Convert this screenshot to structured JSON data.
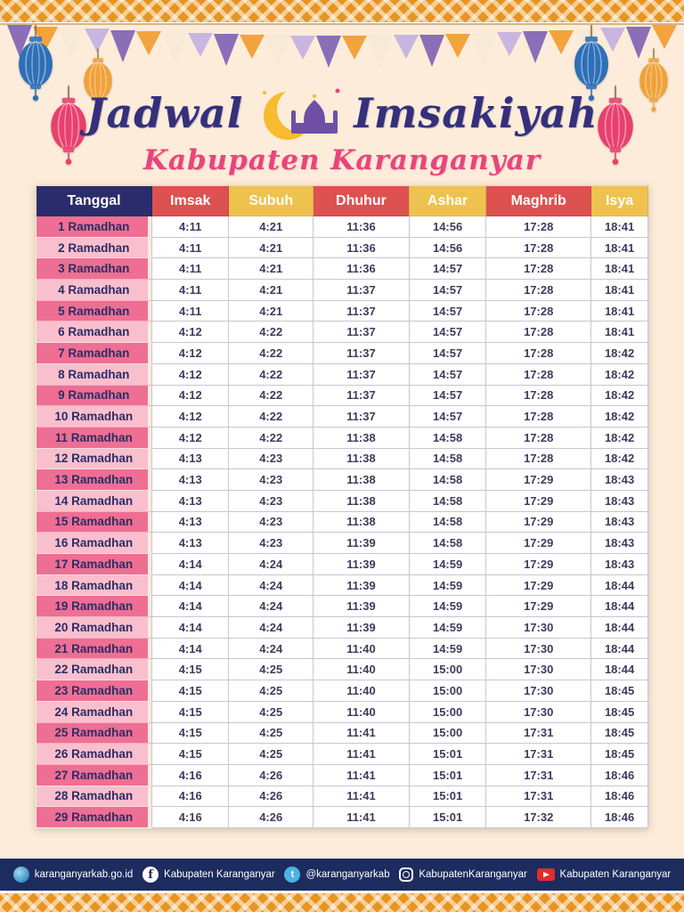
{
  "title": {
    "left": "Jadwal",
    "right": "Imsakiyah",
    "subtitle": "Kabupaten Karanganyar"
  },
  "table": {
    "headers": [
      "Tanggal",
      "Imsak",
      "Subuh",
      "Dhuhur",
      "Ashar",
      "Maghrib",
      "Isya"
    ],
    "header_colors": [
      "#2b2c6b",
      "#dd5150",
      "#eec24e",
      "#dd5150",
      "#eec24e",
      "#dd5150",
      "#eec24e"
    ],
    "row_label_colors": {
      "odd": "#ee6f93",
      "even": "#f9bfcd"
    },
    "rows": [
      [
        "1 Ramadhan",
        "4:11",
        "4:21",
        "11:36",
        "14:56",
        "17:28",
        "18:41"
      ],
      [
        "2 Ramadhan",
        "4:11",
        "4:21",
        "11:36",
        "14:56",
        "17:28",
        "18:41"
      ],
      [
        "3 Ramadhan",
        "4:11",
        "4:21",
        "11:36",
        "14:57",
        "17:28",
        "18:41"
      ],
      [
        "4 Ramadhan",
        "4:11",
        "4:21",
        "11:37",
        "14:57",
        "17:28",
        "18:41"
      ],
      [
        "5 Ramadhan",
        "4:11",
        "4:21",
        "11:37",
        "14:57",
        "17:28",
        "18:41"
      ],
      [
        "6 Ramadhan",
        "4:12",
        "4:22",
        "11:37",
        "14:57",
        "17:28",
        "18:41"
      ],
      [
        "7 Ramadhan",
        "4:12",
        "4:22",
        "11:37",
        "14:57",
        "17:28",
        "18:42"
      ],
      [
        "8 Ramadhan",
        "4:12",
        "4:22",
        "11:37",
        "14:57",
        "17:28",
        "18:42"
      ],
      [
        "9 Ramadhan",
        "4:12",
        "4:22",
        "11:37",
        "14:57",
        "17:28",
        "18:42"
      ],
      [
        "10 Ramadhan",
        "4:12",
        "4:22",
        "11:37",
        "14:57",
        "17:28",
        "18:42"
      ],
      [
        "11 Ramadhan",
        "4:12",
        "4:22",
        "11:38",
        "14:58",
        "17:28",
        "18:42"
      ],
      [
        "12 Ramadhan",
        "4:13",
        "4:23",
        "11:38",
        "14:58",
        "17:28",
        "18:42"
      ],
      [
        "13 Ramadhan",
        "4:13",
        "4:23",
        "11:38",
        "14:58",
        "17:29",
        "18:43"
      ],
      [
        "14 Ramadhan",
        "4:13",
        "4:23",
        "11:38",
        "14:58",
        "17:29",
        "18:43"
      ],
      [
        "15 Ramadhan",
        "4:13",
        "4:23",
        "11:38",
        "14:58",
        "17:29",
        "18:43"
      ],
      [
        "16 Ramadhan",
        "4:13",
        "4:23",
        "11:39",
        "14:58",
        "17:29",
        "18:43"
      ],
      [
        "17 Ramadhan",
        "4:14",
        "4:24",
        "11:39",
        "14:59",
        "17:29",
        "18:43"
      ],
      [
        "18 Ramadhan",
        "4:14",
        "4:24",
        "11:39",
        "14:59",
        "17:29",
        "18:44"
      ],
      [
        "19 Ramadhan",
        "4:14",
        "4:24",
        "11:39",
        "14:59",
        "17:29",
        "18:44"
      ],
      [
        "20 Ramadhan",
        "4:14",
        "4:24",
        "11:39",
        "14:59",
        "17:30",
        "18:44"
      ],
      [
        "21 Ramadhan",
        "4:14",
        "4:24",
        "11:40",
        "14:59",
        "17:30",
        "18:44"
      ],
      [
        "22 Ramadhan",
        "4:15",
        "4:25",
        "11:40",
        "15:00",
        "17:30",
        "18:44"
      ],
      [
        "23 Ramadhan",
        "4:15",
        "4:25",
        "11:40",
        "15:00",
        "17:30",
        "18:45"
      ],
      [
        "24 Ramadhan",
        "4:15",
        "4:25",
        "11:40",
        "15:00",
        "17:30",
        "18:45"
      ],
      [
        "25 Ramadhan",
        "4:15",
        "4:25",
        "11:41",
        "15:00",
        "17:31",
        "18:45"
      ],
      [
        "26 Ramadhan",
        "4:15",
        "4:25",
        "11:41",
        "15:01",
        "17:31",
        "18:45"
      ],
      [
        "27 Ramadhan",
        "4:16",
        "4:26",
        "11:41",
        "15:01",
        "17:31",
        "18:46"
      ],
      [
        "28 Ramadhan",
        "4:16",
        "4:26",
        "11:41",
        "15:01",
        "17:31",
        "18:46"
      ],
      [
        "29 Ramadhan",
        "4:16",
        "4:26",
        "11:41",
        "15:01",
        "17:32",
        "18:46"
      ]
    ]
  },
  "footer": {
    "bar_color": "#1c2c5e",
    "items": [
      {
        "icon": "globe-logo",
        "label": "karanganyarkab.go.id"
      },
      {
        "icon": "facebook",
        "label": "Kabupaten Karanganyar"
      },
      {
        "icon": "twitter",
        "label": "@karanganyarkab"
      },
      {
        "icon": "instagram",
        "label": "KabupatenKaranganyar"
      },
      {
        "icon": "youtube",
        "label": "Kabupaten Karanganyar"
      }
    ]
  },
  "decor": {
    "background_color": "#fcecd9",
    "border_pattern_color": "#e8941f",
    "bunting_colors": [
      "#8a6fb8",
      "#f3a33c",
      "#f7ead6",
      "#c9b6e0"
    ],
    "lantern_colors": [
      "#2e6fb7",
      "#f0a23a",
      "#e8406e",
      "#2e6fb7",
      "#f0a23a",
      "#e8406e"
    ]
  }
}
